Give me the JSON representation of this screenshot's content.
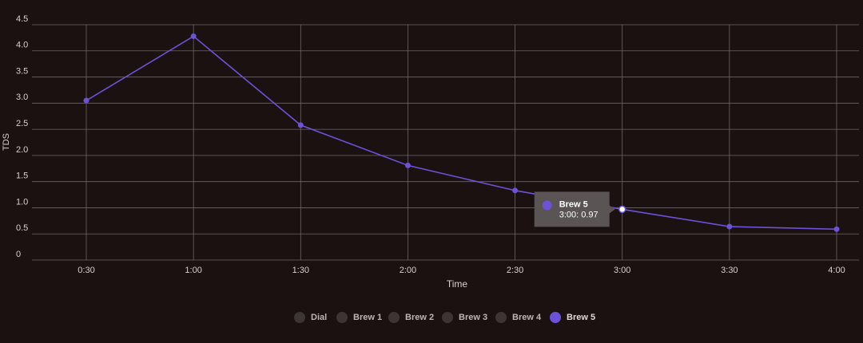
{
  "chart_data": {
    "type": "line",
    "x_label": "Time",
    "y_label": "TDS",
    "categories": [
      "0:30",
      "1:00",
      "1:30",
      "2:00",
      "2:30",
      "3:00",
      "3:30",
      "4:00"
    ],
    "series": [
      {
        "name": "Dial",
        "color": "#3d3434",
        "visible": false,
        "values": [
          null,
          null,
          null,
          null,
          null,
          null,
          null,
          null
        ]
      },
      {
        "name": "Brew 1",
        "color": "#3d3434",
        "visible": false,
        "values": [
          null,
          null,
          null,
          null,
          null,
          null,
          null,
          null
        ]
      },
      {
        "name": "Brew 2",
        "color": "#3d3434",
        "visible": false,
        "values": [
          null,
          null,
          null,
          null,
          null,
          null,
          null,
          null
        ]
      },
      {
        "name": "Brew 3",
        "color": "#3d3434",
        "visible": false,
        "values": [
          null,
          null,
          null,
          null,
          null,
          null,
          null,
          null
        ]
      },
      {
        "name": "Brew 4",
        "color": "#3d3434",
        "visible": false,
        "values": [
          null,
          null,
          null,
          null,
          null,
          null,
          null,
          null
        ]
      },
      {
        "name": "Brew 5",
        "color": "#6b52d6",
        "visible": true,
        "values": [
          3.05,
          4.28,
          2.58,
          1.81,
          1.33,
          0.97,
          0.64,
          0.59
        ]
      }
    ],
    "ylim": [
      0,
      4.5
    ],
    "yticks": [
      0,
      0.5,
      {
        "value": 1,
        "label": "1.0"
      },
      1.5,
      {
        "value": 2,
        "label": "2.0"
      },
      2.5,
      {
        "value": 3,
        "label": "3.0"
      },
      3.5,
      {
        "value": 4,
        "label": "4.0"
      },
      4.5
    ],
    "grid": true
  }
}
